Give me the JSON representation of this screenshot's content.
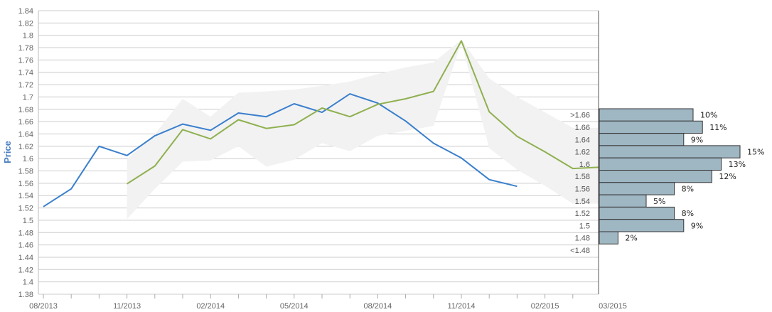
{
  "chart_data": {
    "type": "line",
    "ylabel": "Price",
    "ylim": [
      1.38,
      1.84
    ],
    "yticks": [
      "1.38",
      "1.4",
      "1.42",
      "1.44",
      "1.46",
      "1.48",
      "1.5",
      "1.52",
      "1.54",
      "1.56",
      "1.58",
      "1.6",
      "1.62",
      "1.64",
      "1.66",
      "1.68",
      "1.7",
      "1.72",
      "1.74",
      "1.76",
      "1.78",
      "1.8",
      "1.82",
      "1.84"
    ],
    "x_labels": [
      "08/2013",
      "11/2013",
      "02/2014",
      "05/2014",
      "08/2014",
      "11/2014",
      "02/2015",
      "03/2015"
    ],
    "grid": true,
    "colors": {
      "actual": "#3a7fcd",
      "forecast": "#8fb050",
      "band": "#f2f2f2",
      "bars": "#9fb6c3",
      "grid": "#cccccc"
    },
    "series": [
      {
        "key": "actual",
        "x": [
          "2013-08",
          "2013-09",
          "2013-10",
          "2013-11",
          "2013-12",
          "2014-01",
          "2014-02",
          "2014-03",
          "2014-04",
          "2014-05",
          "2014-06",
          "2014-07",
          "2014-08",
          "2014-09",
          "2014-10",
          "2014-11",
          "2014-12",
          "2015-01"
        ],
        "values": [
          1.522,
          1.551,
          1.62,
          1.605,
          1.637,
          1.656,
          1.646,
          1.674,
          1.668,
          1.689,
          1.675,
          1.705,
          1.69,
          1.661,
          1.625,
          1.601,
          1.566,
          1.555
        ]
      },
      {
        "key": "forecast",
        "x": [
          "2013-11",
          "2013-12",
          "2014-01",
          "2014-02",
          "2014-03",
          "2014-04",
          "2014-05",
          "2014-06",
          "2014-07",
          "2014-08",
          "2014-09",
          "2014-10",
          "2014-11",
          "2014-12",
          "2015-01",
          "2015-02",
          "2015-03",
          "2015-03-31"
        ],
        "values": [
          1.559,
          1.588,
          1.647,
          1.632,
          1.663,
          1.649,
          1.655,
          1.682,
          1.668,
          1.688,
          1.697,
          1.709,
          1.791,
          1.676,
          1.636,
          1.611,
          1.584,
          1.586
        ]
      }
    ],
    "band": {
      "x": [
        "2013-11",
        "2013-12",
        "2014-01",
        "2014-02",
        "2014-03",
        "2014-04",
        "2014-05",
        "2014-06",
        "2014-07",
        "2014-08",
        "2014-09",
        "2014-10",
        "2014-11",
        "2014-12",
        "2015-01",
        "2015-02",
        "2015-03",
        "2015-03-31"
      ],
      "upper": [
        1.599,
        1.64,
        1.697,
        1.668,
        1.707,
        1.709,
        1.712,
        1.718,
        1.725,
        1.737,
        1.748,
        1.756,
        1.793,
        1.73,
        1.7,
        1.675,
        1.65,
        1.65
      ],
      "lower": [
        1.502,
        1.551,
        1.595,
        1.597,
        1.62,
        1.587,
        1.598,
        1.625,
        1.612,
        1.637,
        1.645,
        1.653,
        1.788,
        1.617,
        1.582,
        1.556,
        1.527,
        1.527
      ]
    },
    "distribution": [
      {
        "label": ">1.66",
        "percent": 10,
        "text": "10%"
      },
      {
        "label": "1.66",
        "percent": 11,
        "text": "11%"
      },
      {
        "label": "1.64",
        "percent": 9,
        "text": "9%"
      },
      {
        "label": "1.62",
        "percent": 15,
        "text": "15%"
      },
      {
        "label": "1.6",
        "percent": 13,
        "text": "13%"
      },
      {
        "label": "1.58",
        "percent": 12,
        "text": "12%"
      },
      {
        "label": "1.56",
        "percent": 8,
        "text": "8%"
      },
      {
        "label": "1.54",
        "percent": 5,
        "text": "5%"
      },
      {
        "label": "1.52",
        "percent": 8,
        "text": "8%"
      },
      {
        "label": "1.5",
        "percent": 9,
        "text": "9%"
      },
      {
        "label": "1.48",
        "percent": 2,
        "text": "2%"
      },
      {
        "label": "<1.48",
        "percent": 0,
        "text": ""
      }
    ]
  }
}
